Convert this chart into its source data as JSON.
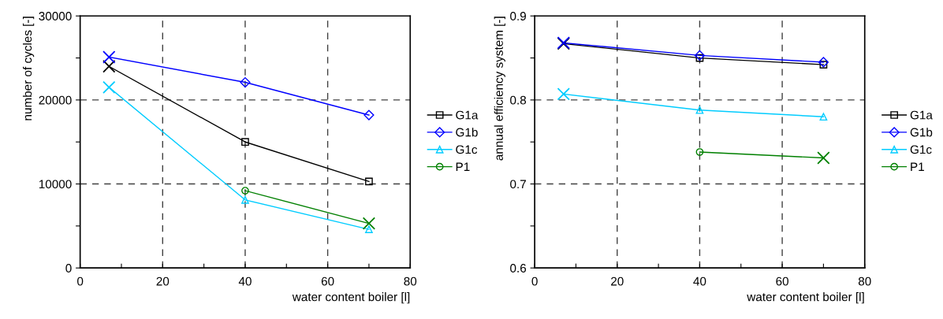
{
  "chart_data": [
    {
      "type": "line",
      "xlabel": "water content boiler [l]",
      "ylabel": "number of cycles [-]",
      "xlim": [
        0,
        80
      ],
      "ylim": [
        0,
        30000
      ],
      "xticks": [
        0,
        {
          "value": 10,
          "label": null
        },
        20,
        {
          "value": 30,
          "label": null
        },
        40,
        {
          "value": 50,
          "label": null
        },
        60,
        {
          "value": 70,
          "label": null
        },
        80
      ],
      "yticks": [
        0,
        {
          "value": 5000,
          "label": null
        },
        10000,
        {
          "value": 15000,
          "label": null
        },
        20000,
        {
          "value": 25000,
          "label": null
        },
        30000
      ],
      "grid": true,
      "legend": "right",
      "line_style": "solid",
      "series": [
        {
          "name": "G1a",
          "color": "#000000",
          "marker": "square",
          "x": [
            7,
            40,
            70
          ],
          "values": [
            24000,
            15000,
            10300
          ]
        },
        {
          "name": "G1b",
          "color": "#0000ff",
          "marker": "diamond",
          "x": [
            7,
            40,
            70
          ],
          "values": [
            25100,
            22100,
            18200
          ]
        },
        {
          "name": "G1c",
          "color": "#00ccff",
          "marker": "triangle",
          "x": [
            7,
            40,
            70
          ],
          "values": [
            21500,
            8100,
            4600
          ]
        },
        {
          "name": "P1",
          "color": "#008000",
          "marker": "circle",
          "x": [
            40,
            70
          ],
          "values": [
            9200,
            5300
          ]
        },
        {
          "type": "scatter",
          "marker": "cross",
          "x": [
            7,
            7,
            7,
            70
          ],
          "values": [
            24000,
            25100,
            21500,
            5300
          ],
          "colors": [
            "#000000",
            "#0000ff",
            "#00ccff",
            "#008000"
          ]
        }
      ]
    },
    {
      "type": "line",
      "xlabel": "water content boiler [l]",
      "ylabel": "annual efficiency system [-]",
      "xlim": [
        0,
        80
      ],
      "ylim": [
        0.6,
        0.9
      ],
      "xticks": [
        0,
        {
          "value": 10,
          "label": null
        },
        20,
        {
          "value": 30,
          "label": null
        },
        40,
        {
          "value": 50,
          "label": null
        },
        60,
        {
          "value": 70,
          "label": null
        },
        80
      ],
      "yticks": [
        0.6,
        {
          "value": 0.65,
          "label": null
        },
        0.7,
        {
          "value": 0.75,
          "label": null
        },
        0.8,
        {
          "value": 0.85,
          "label": null
        },
        0.9
      ],
      "grid": true,
      "legend": "right",
      "line_style": "solid",
      "series": [
        {
          "name": "G1a",
          "color": "#000000",
          "marker": "square",
          "x": [
            7,
            40,
            70
          ],
          "values": [
            0.867,
            0.85,
            0.842
          ]
        },
        {
          "name": "G1b",
          "color": "#0000ff",
          "marker": "diamond",
          "x": [
            7,
            40,
            70
          ],
          "values": [
            0.868,
            0.853,
            0.845
          ]
        },
        {
          "name": "G1c",
          "color": "#00ccff",
          "marker": "triangle",
          "x": [
            7,
            40,
            70
          ],
          "values": [
            0.807,
            0.788,
            0.78
          ]
        },
        {
          "name": "P1",
          "color": "#008000",
          "marker": "circle",
          "x": [
            40,
            70
          ],
          "values": [
            0.738,
            0.731
          ]
        },
        {
          "type": "scatter",
          "marker": "cross",
          "x": [
            7,
            7,
            7,
            70
          ],
          "values": [
            0.867,
            0.868,
            0.807,
            0.731
          ],
          "colors": [
            "#000000",
            "#0000ff",
            "#00ccff",
            "#008000"
          ]
        }
      ]
    }
  ]
}
